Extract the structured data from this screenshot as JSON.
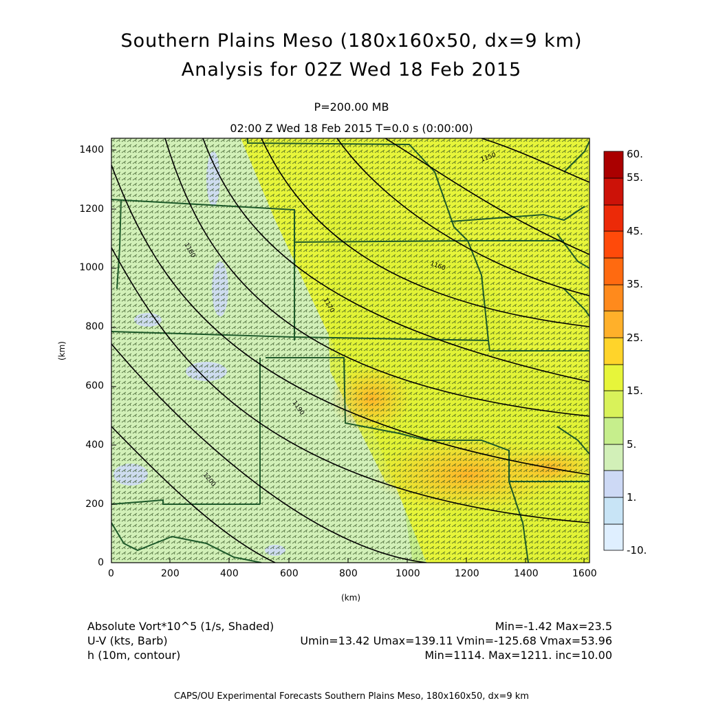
{
  "title": {
    "line1": "Southern Plains Meso (180x160x50, dx=9 km)",
    "line2": "Analysis for 02Z Wed 18 Feb 2015"
  },
  "level": "P=200.00 MB",
  "time": "02:00 Z Wed 18 Feb 2015    T=0.0 s (0:00:00)",
  "axes": {
    "x_label": "(km)",
    "y_label": "(km)",
    "x_ticks": [
      "0",
      "200",
      "400",
      "600",
      "800",
      "1000",
      "1200",
      "1400",
      "1600"
    ],
    "y_ticks": [
      "0",
      "200",
      "400",
      "600",
      "800",
      "1000",
      "1200",
      "1400"
    ]
  },
  "colorbar": {
    "labels": [
      "60.",
      "55.",
      "45.",
      "35.",
      "25.",
      "15.",
      "5.",
      "1.",
      "-10."
    ],
    "colors": [
      "#dfefff",
      "#c8e4f6",
      "#cdd9f5",
      "#d2f0b8",
      "#c6ee8c",
      "#e7f53a",
      "#ffd42a",
      "#ffb02a",
      "#ff8a1c",
      "#ff6a10",
      "#ff4a0a",
      "#ec2a08",
      "#cc1208",
      "#aa0000"
    ]
  },
  "contours": {
    "labels": [
      "1150",
      "1160",
      "1170",
      "1180",
      "1190",
      "1200"
    ]
  },
  "info": {
    "vort_label": "Absolute Vort*10^5 (1/s, Shaded)",
    "vort_range": "Min=-1.42 Max=23.5",
    "wind_label": "U-V (kts, Barb)",
    "wind_range": "Umin=13.42 Umax=139.11 Vmin=-125.68 Vmax=53.96",
    "height_label": "h (10m, contour)",
    "height_range": "Min=1114. Max=1211. inc=10.00"
  },
  "footer": "CAPS/OU Experimental Forecasts  Southern Plains Meso, 180x160x50, dx=9 km",
  "chart_data": {
    "type": "heatmap",
    "x_range_km": [
      0,
      1600
    ],
    "y_range_km": [
      0,
      1430
    ],
    "vorticity_min": -1.42,
    "vorticity_max": 23.5,
    "height_contour_min": 1114,
    "height_contour_max": 1211,
    "height_contour_inc": 10.0
  }
}
